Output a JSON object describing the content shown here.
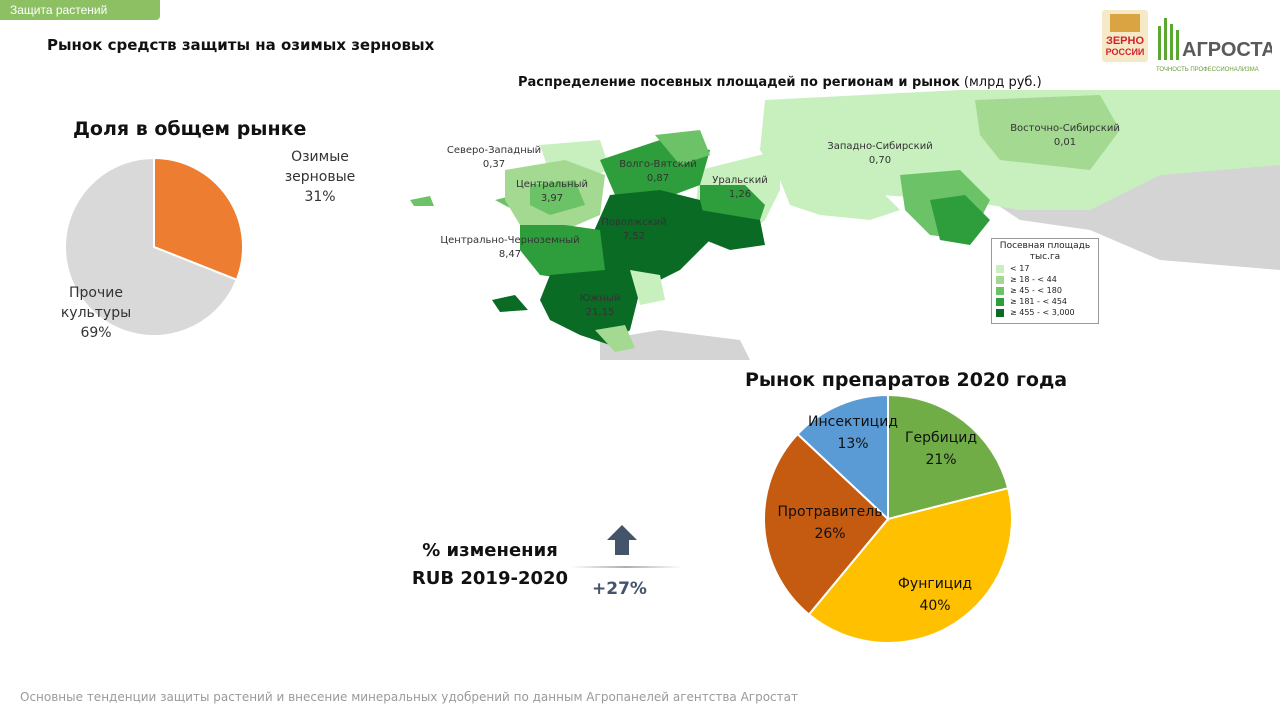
{
  "header": {
    "section_tag": "Защита растений",
    "title": "Рынок средств защиты на озимых зерновых"
  },
  "logo": {
    "zerno_top": "ЗЕРНО",
    "zerno_bottom": "РОССИИ",
    "brand": "АГРОСТАТ",
    "tagline": "ТОЧНОСТЬ ПРОФЕССИОНАЛИЗМА"
  },
  "map": {
    "title_bold": "Распределение посевных площадей по регионам и рынок",
    "title_unit": " (млрд руб.)",
    "regions": [
      {
        "name": "Северо-Западный",
        "value": "0,37"
      },
      {
        "name": "Центральный",
        "value": "3,97"
      },
      {
        "name": "Волго-Вятский",
        "value": "0,87"
      },
      {
        "name": "Уральский",
        "value": "1,26"
      },
      {
        "name": "Поволжский",
        "value": "7,52"
      },
      {
        "name": "Центрально-Черноземный",
        "value": "8,47"
      },
      {
        "name": "Южный",
        "value": "21,15"
      },
      {
        "name": "Западно-Сибирский",
        "value": "0,70"
      },
      {
        "name": "Восточно-Сибирский",
        "value": "0,01"
      }
    ],
    "legend": {
      "title": "Посевная площадь",
      "unit": "тыс.га",
      "items": [
        {
          "label": "<   17",
          "color": "#c8f0bf"
        },
        {
          "label": "≥   18  -  <     44",
          "color": "#a3d990"
        },
        {
          "label": "≥   45  -  <   180",
          "color": "#6cc266"
        },
        {
          "label": "≥  181  -  <   454",
          "color": "#2e9e3c"
        },
        {
          "label": "≥  455  -  <  3,000",
          "color": "#0a6b25"
        }
      ]
    }
  },
  "share": {
    "title": "Доля в общем рынке",
    "slices": [
      {
        "label_line1": "Озимые",
        "label_line2": "зерновые",
        "pct_text": "31%"
      },
      {
        "label_line1": "Прочие",
        "label_line2": "культуры",
        "pct_text": "69%"
      }
    ]
  },
  "market": {
    "title": "Рынок препаратов 2020 года",
    "slices": [
      {
        "label": "Гербицид",
        "pct_text": "21%"
      },
      {
        "label": "Фунгицид",
        "pct_text": "40%"
      },
      {
        "label": "Протравитель",
        "pct_text": "26%"
      },
      {
        "label": "Инсектицид",
        "pct_text": "13%"
      }
    ]
  },
  "change": {
    "label_line1": "% изменения",
    "label_line2": "RUB 2019-2020",
    "value": "+27%"
  },
  "footer": {
    "text": "Основные тенденции защиты растений и внесение минеральных удобрений  по данным Агропанелей агентства Агростат"
  },
  "chart_data": [
    {
      "type": "pie",
      "title": "Доля в общем рынке",
      "categories": [
        "Озимые зерновые",
        "Прочие культуры"
      ],
      "values": [
        31,
        69
      ],
      "colors": [
        "#ed7d31",
        "#d9d9d9"
      ],
      "start_angle_deg": 0,
      "direction": "clockwise"
    },
    {
      "type": "pie",
      "title": "Рынок препаратов 2020 года",
      "categories": [
        "Гербицид",
        "Фунгицид",
        "Протравитель",
        "Инсектицид"
      ],
      "values": [
        21,
        40,
        26,
        13
      ],
      "colors": [
        "#70ad47",
        "#ffc000",
        "#c55a11",
        "#5b9bd5"
      ],
      "start_angle_deg": 0,
      "direction": "clockwise"
    }
  ]
}
